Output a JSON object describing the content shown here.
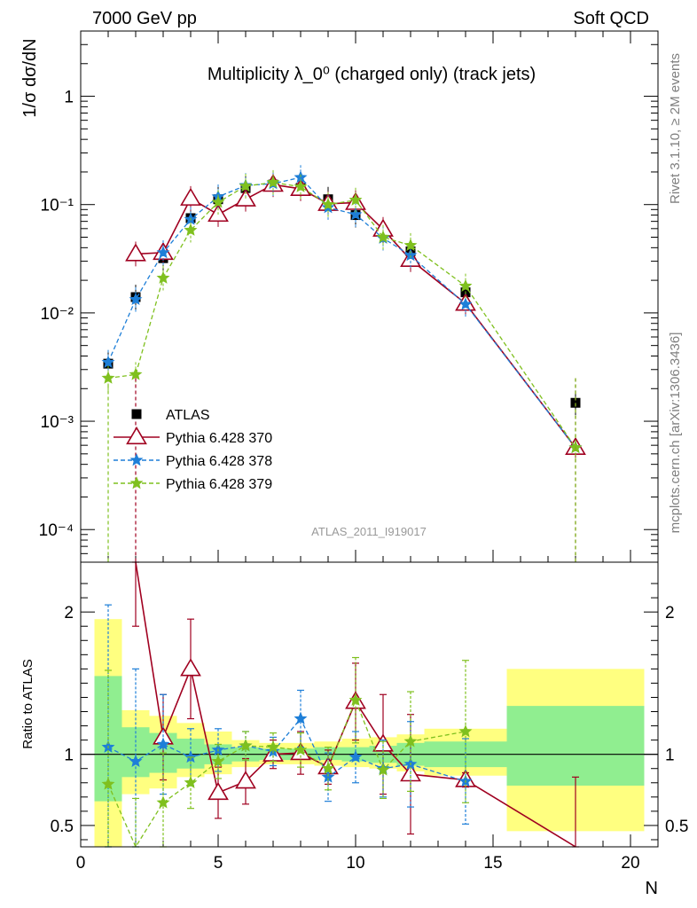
{
  "header": {
    "left": "7000 GeV pp",
    "right": "Soft QCD"
  },
  "side_labels": {
    "top": "Rivet 3.1.10, ≥ 2M events",
    "bottom": "mcplots.cern.ch [arXiv:1306.3436]"
  },
  "chart_data": [
    {
      "type": "line",
      "title": "Multiplicity λ_0⁰ (charged only) (track jets)",
      "ylabel": "1/σ dσ/dN",
      "watermark": "ATLAS_2011_I919017",
      "yscale": "log",
      "ylim": [
        5e-05,
        4
      ],
      "xlim": [
        0,
        21
      ],
      "ytick_labels": [
        "10⁻⁴",
        "10⁻³",
        "10⁻²",
        "10⁻¹",
        "1"
      ],
      "legend_position": "bottom-left",
      "series": [
        {
          "name": "ATLAS",
          "color": "#000000",
          "marker": "square",
          "x": [
            1,
            2,
            3,
            4,
            5,
            6,
            7,
            8,
            9,
            10,
            11,
            12,
            14,
            18
          ],
          "y": [
            0.0034,
            0.014,
            0.032,
            0.075,
            0.112,
            0.142,
            0.153,
            0.142,
            0.112,
            0.08,
            0.056,
            0.037,
            0.0155,
            0.00148
          ]
        },
        {
          "name": "Pythia 6.428 370",
          "color": "#a00020",
          "marker": "triangle",
          "line": "solid",
          "x": [
            2,
            3,
            4,
            5,
            6,
            7,
            8,
            9,
            10,
            11,
            12,
            14,
            18
          ],
          "y": [
            0.035,
            0.036,
            0.114,
            0.081,
            0.112,
            0.153,
            0.14,
            0.102,
            0.104,
            0.059,
            0.031,
            0.0122,
            0.00057
          ]
        },
        {
          "name": "Pythia 6.428 378",
          "color": "#1e7fd8",
          "marker": "star",
          "line": "dashed",
          "x": [
            1,
            2,
            3,
            4,
            5,
            6,
            7,
            8,
            9,
            10,
            11,
            12,
            14,
            18
          ],
          "y": [
            0.0035,
            0.0133,
            0.036,
            0.073,
            0.118,
            0.15,
            0.156,
            0.178,
            0.094,
            0.081,
            0.049,
            0.034,
            0.012,
            0.00057
          ]
        },
        {
          "name": "Pythia 6.428 379",
          "color": "#7fc01e",
          "marker": "star",
          "line": "dashed",
          "x": [
            1,
            2,
            3,
            4,
            5,
            6,
            7,
            8,
            9,
            10,
            11,
            12,
            14,
            18
          ],
          "y": [
            0.0025,
            0.0027,
            0.021,
            0.058,
            0.105,
            0.148,
            0.16,
            0.146,
            0.1,
            0.11,
            0.05,
            0.042,
            0.0177,
            0.00057
          ]
        }
      ]
    },
    {
      "type": "line",
      "ylabel": "Ratio to ATLAS",
      "xlabel": "N",
      "xlim": [
        0,
        21
      ],
      "ylim": [
        0.35,
        2.35
      ],
      "ytick_labels": [
        "0.5",
        "1",
        "2"
      ],
      "xtick_labels": [
        "0",
        "5",
        "10",
        "15",
        "20"
      ],
      "reference_line": 1,
      "bands": [
        {
          "x": [
            0.5,
            1.5
          ],
          "inner": [
            0.67,
            1.55
          ],
          "outer": [
            0.3,
            1.95
          ]
        },
        {
          "x": [
            1.5,
            2.5
          ],
          "inner": [
            0.84,
            1.19
          ],
          "outer": [
            0.72,
            1.31
          ]
        },
        {
          "x": [
            2.5,
            3.5
          ],
          "inner": [
            0.87,
            1.15
          ],
          "outer": [
            0.76,
            1.27
          ]
        },
        {
          "x": [
            3.5,
            4.5
          ],
          "inner": [
            0.9,
            1.11
          ],
          "outer": [
            0.84,
            1.22
          ]
        },
        {
          "x": [
            4.5,
            5.5
          ],
          "inner": [
            0.93,
            1.07
          ],
          "outer": [
            0.86,
            1.16
          ]
        },
        {
          "x": [
            5.5,
            6.5
          ],
          "inner": [
            0.95,
            1.05
          ],
          "outer": [
            0.91,
            1.1
          ]
        },
        {
          "x": [
            6.5,
            7.5
          ],
          "inner": [
            0.96,
            1.04
          ],
          "outer": [
            0.93,
            1.08
          ]
        },
        {
          "x": [
            7.5,
            8.5
          ],
          "inner": [
            0.96,
            1.04
          ],
          "outer": [
            0.93,
            1.08
          ]
        },
        {
          "x": [
            8.5,
            9.5
          ],
          "inner": [
            0.96,
            1.05
          ],
          "outer": [
            0.92,
            1.09
          ]
        },
        {
          "x": [
            9.5,
            10.5
          ],
          "inner": [
            0.95,
            1.05
          ],
          "outer": [
            0.91,
            1.11
          ]
        },
        {
          "x": [
            10.5,
            11.5
          ],
          "inner": [
            0.94,
            1.06
          ],
          "outer": [
            0.9,
            1.12
          ]
        },
        {
          "x": [
            11.5,
            12.5
          ],
          "inner": [
            0.92,
            1.08
          ],
          "outer": [
            0.88,
            1.14
          ]
        },
        {
          "x": [
            12.5,
            15.5
          ],
          "inner": [
            0.91,
            1.09
          ],
          "outer": [
            0.85,
            1.18
          ]
        },
        {
          "x": [
            15.5,
            20.5
          ],
          "inner": [
            0.78,
            1.34
          ],
          "outer": [
            0.46,
            1.6
          ]
        }
      ],
      "series": [
        {
          "name": "Pythia 6.428 370",
          "color": "#a00020",
          "marker": "triangle",
          "line": "solid",
          "x": [
            2,
            3,
            4,
            5,
            6,
            7,
            8,
            9,
            10,
            11,
            12,
            14,
            18
          ],
          "y": [
            2.5,
            1.12,
            1.6,
            0.73,
            0.81,
            1.0,
            1.01,
            0.91,
            1.37,
            1.07,
            0.86,
            0.82,
            0.34
          ],
          "err": [
            0.6,
            0.3,
            0.35,
            0.18,
            0.16,
            0.1,
            0.15,
            0.12,
            0.27,
            0.35,
            0.42,
            0.05,
            0.5
          ]
        },
        {
          "name": "Pythia 6.428 378",
          "color": "#1e7fd8",
          "marker": "star",
          "line": "dashed",
          "x": [
            1,
            2,
            3,
            4,
            5,
            6,
            7,
            8,
            9,
            10,
            11,
            12,
            14
          ],
          "y": [
            1.05,
            0.95,
            1.07,
            0.98,
            1.03,
            1.06,
            1.02,
            1.25,
            0.84,
            0.98,
            0.9,
            0.93,
            0.81
          ],
          "err": [
            1.0,
            0.65,
            0.35,
            0.2,
            0.15,
            0.1,
            0.1,
            0.2,
            0.17,
            0.18,
            0.2,
            0.3,
            0.3
          ]
        },
        {
          "name": "Pythia 6.428 379",
          "color": "#7fc01e",
          "marker": "star",
          "line": "dashed",
          "x": [
            1,
            2,
            3,
            4,
            5,
            6,
            7,
            8,
            9,
            10,
            11,
            12,
            14
          ],
          "y": [
            0.79,
            0.19,
            0.66,
            0.8,
            0.95,
            1.06,
            1.05,
            1.03,
            0.9,
            1.38,
            0.89,
            1.09,
            1.16
          ],
          "err": [
            0.8,
            0.5,
            0.35,
            0.18,
            0.12,
            0.1,
            0.1,
            0.12,
            0.15,
            0.3,
            0.2,
            0.35,
            0.5
          ]
        }
      ]
    }
  ]
}
